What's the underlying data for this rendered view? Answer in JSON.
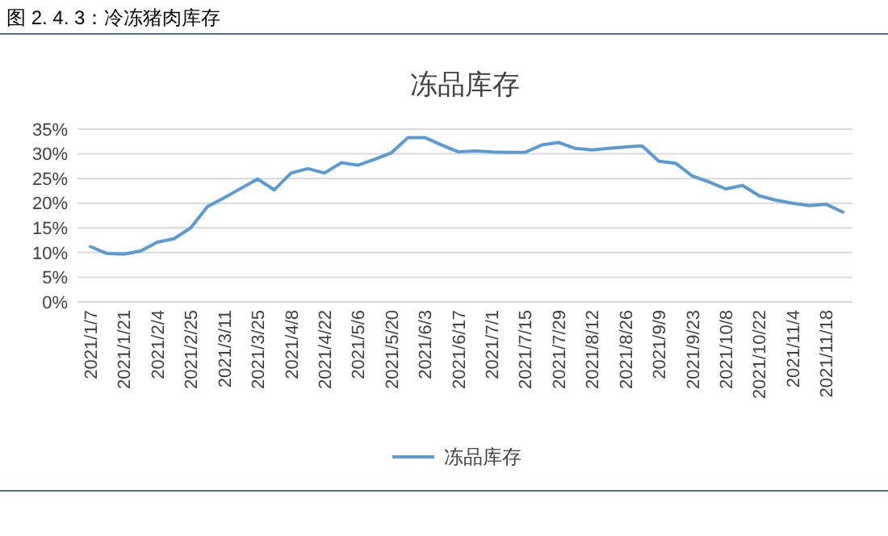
{
  "chart_data": {
    "type": "line",
    "title": "图 2. 4. 3：冷冻猪肉库存",
    "subtitle": "冻品库存",
    "categories": [
      "2021/1/7",
      null,
      "2021/1/21",
      null,
      "2021/2/4",
      null,
      "2021/2/25",
      null,
      "2021/3/11",
      null,
      "2021/3/25",
      null,
      "2021/4/8",
      null,
      "2021/4/22",
      null,
      "2021/5/6",
      null,
      "2021/5/20",
      null,
      "2021/6/3",
      null,
      "2021/6/17",
      null,
      "2021/7/1",
      null,
      "2021/7/15",
      null,
      "2021/7/29",
      null,
      "2021/8/12",
      null,
      "2021/8/26",
      null,
      "2021/9/9",
      null,
      "2021/9/23",
      null,
      "2021/10/8",
      null,
      "2021/10/22",
      null,
      "2021/11/4",
      null,
      "2021/11/18",
      null
    ],
    "series": [
      {
        "name": "冻品库存",
        "color": "#5b9bd5",
        "values": [
          11.2,
          9.8,
          9.7,
          10.3,
          12.1,
          12.8,
          15.0,
          19.3,
          21.1,
          23.0,
          24.9,
          22.7,
          26.1,
          27.0,
          26.1,
          28.2,
          27.7,
          28.9,
          30.2,
          33.3,
          33.3,
          31.8,
          30.4,
          30.6,
          30.4,
          30.3,
          30.3,
          31.8,
          32.3,
          31.1,
          30.8,
          31.1,
          31.4,
          31.6,
          28.5,
          28.1,
          25.5,
          24.3,
          22.9,
          23.6,
          21.5,
          20.6,
          20.0,
          19.5,
          19.8,
          18.2
        ]
      }
    ],
    "ylim": [
      0,
      35
    ],
    "yticks": [
      {
        "value": 0,
        "label": "0%"
      },
      {
        "value": 5,
        "label": "5%"
      },
      {
        "value": 10,
        "label": "10%"
      },
      {
        "value": 15,
        "label": "15%"
      },
      {
        "value": 20,
        "label": "20%"
      },
      {
        "value": 25,
        "label": "25%"
      },
      {
        "value": 30,
        "label": "30%"
      },
      {
        "value": 35,
        "label": "35%"
      }
    ],
    "grid": "y",
    "legend": "bottom"
  }
}
